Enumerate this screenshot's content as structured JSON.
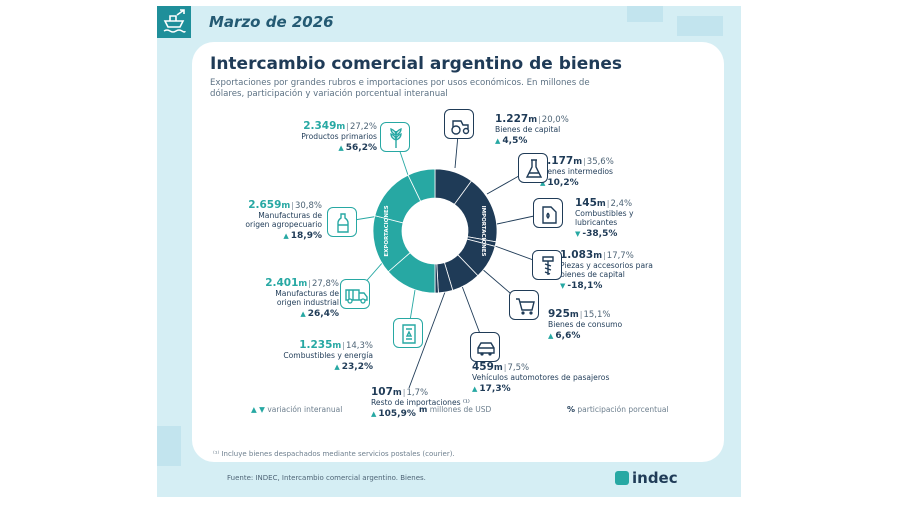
{
  "header": {
    "date": "Marzo de 2026"
  },
  "title": "Intercambio comercial argentino de bienes",
  "subtitle": "Exportaciones por grandes rubros e importaciones por usos económicos. En millones de dólares, participación y variación porcentual interanual",
  "donut": {
    "export_label": "EXPORTACIONES",
    "import_label": "IMPORTACIONES",
    "colors": {
      "exports": "#27a8a3",
      "imports": "#1f3b57"
    }
  },
  "chart_data": {
    "type": "pie",
    "units": "millones de USD",
    "series": [
      {
        "name": "Exportaciones",
        "categories": [
          "Productos primarios",
          "Manufacturas de origen agropecuario",
          "Manufacturas de origen industrial",
          "Combustibles y energía"
        ],
        "values": [
          2349,
          2659,
          2401,
          1235
        ],
        "share_pct": [
          27.2,
          30.8,
          27.8,
          14.3
        ],
        "yoy_change_pct": [
          56.2,
          18.9,
          26.4,
          23.2
        ]
      },
      {
        "name": "Importaciones",
        "categories": [
          "Bienes de capital",
          "Bienes intermedios",
          "Combustibles y lubricantes",
          "Piezas y accesorios para bienes de capital",
          "Bienes de consumo",
          "Vehículos automotores de pasajeros",
          "Resto de importaciones"
        ],
        "values": [
          1227,
          2177,
          145,
          1083,
          925,
          459,
          107
        ],
        "share_pct": [
          20.0,
          35.6,
          2.4,
          17.7,
          15.1,
          7.5,
          1.7
        ],
        "yoy_change_pct": [
          4.5,
          10.2,
          -38.5,
          -18.1,
          6.6,
          17.3,
          105.9
        ]
      }
    ]
  },
  "exports": [
    {
      "value": "2.349",
      "unit": "m",
      "pct": "27,2%",
      "cat": [
        "Productos primarios"
      ],
      "var": "56,2%",
      "dir": "up",
      "icon": "wheat-icon"
    },
    {
      "value": "2.659",
      "unit": "m",
      "pct": "30,8%",
      "cat": [
        "Manufacturas de",
        "origen agropecuario"
      ],
      "var": "18,9%",
      "dir": "up",
      "icon": "bottle-icon"
    },
    {
      "value": "2.401",
      "unit": "m",
      "pct": "27,8%",
      "cat": [
        "Manufacturas de",
        "origen industrial"
      ],
      "var": "26,4%",
      "dir": "up",
      "icon": "truck-icon"
    },
    {
      "value": "1.235",
      "unit": "m",
      "pct": "14,3%",
      "cat": [
        "Combustibles y energía"
      ],
      "var": "23,2%",
      "dir": "up",
      "icon": "fuel-icon"
    }
  ],
  "imports": [
    {
      "value": "1.227",
      "unit": "m",
      "pct": "20,0%",
      "cat": [
        "Bienes de capital"
      ],
      "var": "4,5%",
      "dir": "up",
      "icon": "tractor-icon"
    },
    {
      "value": "2.177",
      "unit": "m",
      "pct": "35,6%",
      "cat": [
        "Bienes intermedios"
      ],
      "var": "10,2%",
      "dir": "up",
      "icon": "flask-icon"
    },
    {
      "value": "145",
      "unit": "m",
      "pct": "2,4%",
      "cat": [
        "Combustibles y",
        "lubricantes"
      ],
      "var": "-38,5%",
      "dir": "down",
      "icon": "oil-can-icon"
    },
    {
      "value": "1.083",
      "unit": "m",
      "pct": "17,7%",
      "cat": [
        "Piezas y accesorios para",
        "bienes de capital"
      ],
      "var": "-18,1%",
      "dir": "down",
      "icon": "screw-icon"
    },
    {
      "value": "925",
      "unit": "m",
      "pct": "15,1%",
      "cat": [
        "Bienes de consumo"
      ],
      "var": "6,6%",
      "dir": "up",
      "icon": "cart-icon"
    },
    {
      "value": "459",
      "unit": "m",
      "pct": "7,5%",
      "cat": [
        "Vehículos automotores de pasajeros"
      ],
      "var": "17,3%",
      "dir": "up",
      "icon": "car-icon"
    },
    {
      "value": "107",
      "unit": "m",
      "pct": "1,7%",
      "cat": [
        "Resto de importaciones ⁽¹⁾"
      ],
      "var": "105,9%",
      "dir": "up",
      "icon": ""
    }
  ],
  "legend": {
    "var": "variación interanual",
    "m_symbol": "m",
    "m_text": "millones de USD",
    "pct_symbol": "%",
    "pct_text": "participación porcentual"
  },
  "footnote": "⁽¹⁾ Incluye bienes despachados mediante servicios postales (courier).",
  "source": "Fuente: INDEC, Intercambio comercial argentino. Bienes.",
  "brand": "indec"
}
